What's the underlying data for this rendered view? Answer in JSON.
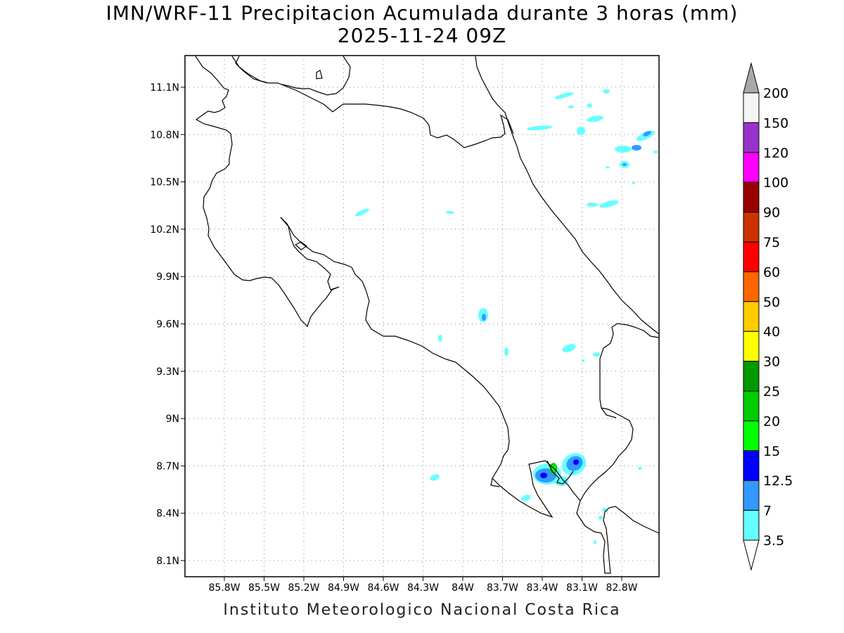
{
  "title_line1": "IMN/WRF-11 Precipitacion Acumulada durante 3 horas (mm)",
  "title_line2": "2025-11-24 09Z",
  "footer": "Instituto Meteorologico Nacional Costa Rica",
  "lon_ticks": [
    "85.8W",
    "85.5W",
    "85.2W",
    "84.9W",
    "84.6W",
    "84.3W",
    "84W",
    "83.7W",
    "83.4W",
    "83.1W",
    "82.8W"
  ],
  "lon_values": [
    -85.8,
    -85.5,
    -85.2,
    -84.9,
    -84.6,
    -84.3,
    -84.0,
    -83.7,
    -83.4,
    -83.1,
    -82.8
  ],
  "lat_ticks": [
    "11.1N",
    "10.8N",
    "10.5N",
    "10.2N",
    "9.9N",
    "9.6N",
    "9.3N",
    "9N",
    "8.7N",
    "8.4N",
    "8.1N"
  ],
  "lat_values": [
    11.1,
    10.8,
    10.5,
    10.2,
    9.9,
    9.6,
    9.3,
    9.0,
    8.7,
    8.4,
    8.1
  ],
  "colorbar": {
    "labels": [
      "200",
      "150",
      "120",
      "100",
      "90",
      "75",
      "60",
      "50",
      "40",
      "30",
      "25",
      "20",
      "15",
      "12.5",
      "7",
      "3.5"
    ],
    "colors": [
      "#f5f5f5",
      "#9932cc",
      "#ff00ff",
      "#990000",
      "#cc3300",
      "#ff0000",
      "#ff6600",
      "#ffcc00",
      "#ffff00",
      "#009900",
      "#00cc00",
      "#00ff00",
      "#0000ff",
      "#3399ff",
      "#66ffff"
    ],
    "over_color": "#a9a9a9",
    "under_color": "#ffffff"
  }
}
